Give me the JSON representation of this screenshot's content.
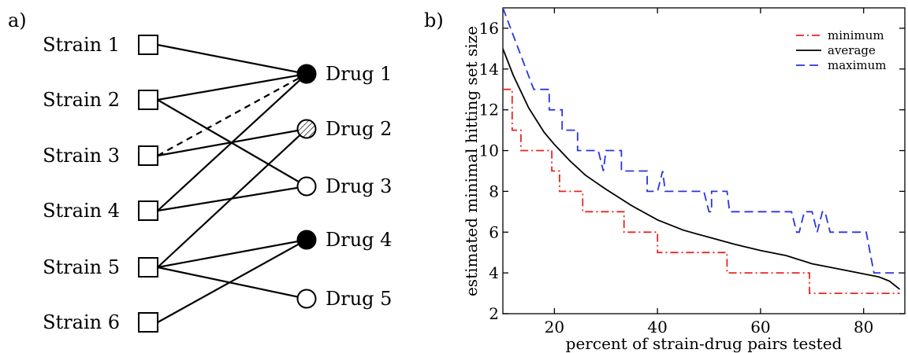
{
  "panel_a": {
    "label": "a)",
    "strains": [
      "Strain 1",
      "Strain 2",
      "Strain 3",
      "Strain 4",
      "Strain 5",
      "Strain 6"
    ],
    "drugs": [
      {
        "name": "Drug 1",
        "fill": "solid"
      },
      {
        "name": "Drug 2",
        "fill": "hatched"
      },
      {
        "name": "Drug 3",
        "fill": "open"
      },
      {
        "name": "Drug 4",
        "fill": "solid"
      },
      {
        "name": "Drug 5",
        "fill": "open"
      }
    ],
    "edges": [
      {
        "strain": 1,
        "drug": 1,
        "style": "solid"
      },
      {
        "strain": 2,
        "drug": 1,
        "style": "solid"
      },
      {
        "strain": 2,
        "drug": 3,
        "style": "solid"
      },
      {
        "strain": 3,
        "drug": 1,
        "style": "dashed"
      },
      {
        "strain": 3,
        "drug": 2,
        "style": "solid"
      },
      {
        "strain": 4,
        "drug": 1,
        "style": "solid"
      },
      {
        "strain": 4,
        "drug": 3,
        "style": "solid"
      },
      {
        "strain": 5,
        "drug": 2,
        "style": "solid"
      },
      {
        "strain": 5,
        "drug": 4,
        "style": "solid"
      },
      {
        "strain": 5,
        "drug": 5,
        "style": "solid"
      },
      {
        "strain": 6,
        "drug": 4,
        "style": "solid"
      }
    ]
  },
  "panel_b": {
    "label": "b)"
  },
  "chart_data": {
    "type": "line",
    "xlabel": "percent of strain-drug pairs tested",
    "ylabel": "estimated minimal hitting set size",
    "xlim": [
      10,
      88
    ],
    "ylim": [
      2,
      17
    ],
    "xticks": [
      20,
      40,
      60,
      80
    ],
    "yticks": [
      2,
      4,
      6,
      8,
      10,
      12,
      14,
      16
    ],
    "grid": false,
    "legend_position": "top-right",
    "series": [
      {
        "name": "minimum",
        "color": "#e8261e",
        "dash": "dashdot",
        "x": [
          10,
          11.8,
          11.8,
          13.5,
          13.5,
          16,
          16,
          19.5,
          19.5,
          21,
          21,
          22,
          22,
          25.5,
          25.5,
          29,
          29,
          33.5,
          33.5,
          40,
          40,
          47.5,
          47.5,
          48.5,
          48.5,
          53.5,
          53.5,
          59.5,
          59.5,
          69.5,
          69.5,
          87
        ],
        "y": [
          13,
          13,
          11,
          11,
          10,
          10,
          10,
          10,
          9,
          9,
          8,
          8,
          8,
          8,
          7,
          7,
          7,
          7,
          6,
          6,
          5,
          5,
          5,
          5,
          5,
          5,
          4,
          4,
          4,
          4,
          3,
          3
        ]
      },
      {
        "name": "average",
        "color": "#000000",
        "dash": "solid",
        "x": [
          10,
          12,
          15,
          18,
          20,
          23,
          26,
          30,
          35,
          40,
          45,
          50,
          55,
          60,
          65,
          70,
          75,
          80,
          83,
          85,
          87
        ],
        "y": [
          15,
          13.7,
          12.1,
          10.9,
          10.3,
          9.5,
          8.8,
          8.1,
          7.3,
          6.6,
          6.1,
          5.75,
          5.4,
          5.1,
          4.85,
          4.45,
          4.2,
          3.95,
          3.8,
          3.6,
          3.2
        ]
      },
      {
        "name": "maximum",
        "color": "#2a35e0",
        "dash": "dashed",
        "x": [
          10,
          11.5,
          11.5,
          13,
          13,
          14.5,
          14.5,
          16,
          16,
          19,
          19,
          21.5,
          21.5,
          24.5,
          24.5,
          27.5,
          27.5,
          28.5,
          29.5,
          30,
          30,
          33,
          33,
          38,
          38,
          40,
          41,
          41.5,
          41.5,
          47.5,
          47.5,
          49,
          50,
          50.5,
          50.5,
          52.5,
          52.5,
          53.5,
          54,
          54,
          65,
          66,
          67,
          67.5,
          68.5,
          70,
          71,
          72,
          72.5,
          73.5,
          74,
          74,
          80,
          80.5,
          82,
          82,
          87
        ],
        "y": [
          17,
          16,
          16,
          15,
          15,
          14,
          14,
          13,
          13,
          13,
          12,
          12,
          11,
          11,
          10,
          10,
          10,
          10,
          9,
          10,
          10,
          10,
          9,
          9,
          8,
          8,
          9,
          8,
          8,
          8,
          8,
          8,
          7,
          7,
          8,
          8,
          8,
          8,
          7,
          7,
          7,
          7,
          6,
          6,
          7,
          7,
          6,
          7,
          7,
          6,
          6,
          6,
          6,
          6,
          4,
          4,
          4
        ]
      }
    ]
  }
}
